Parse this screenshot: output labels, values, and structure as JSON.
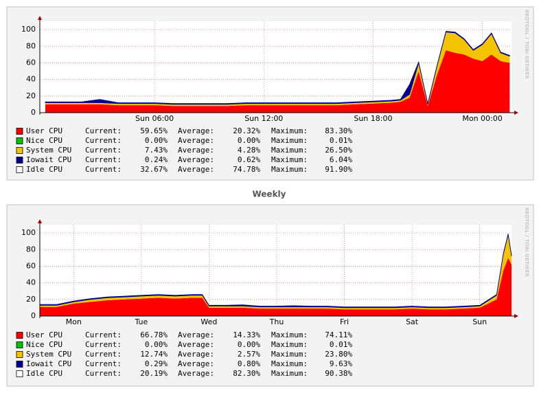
{
  "chart_data": [
    {
      "type": "area",
      "stacked": true,
      "watermark": "RRDTOOL / TOBI OETIKER",
      "x": [
        0,
        1,
        2,
        3,
        4,
        5,
        6,
        7,
        8,
        9,
        10,
        11,
        12,
        13,
        14,
        15,
        16,
        17,
        18,
        19,
        19.5,
        20,
        20.5,
        21,
        21.5,
        22,
        22.5,
        23,
        23.5,
        24,
        24.5,
        25,
        25.5
      ],
      "xlim": [
        -0.3,
        25.6
      ],
      "xticks": [
        {
          "value": 6,
          "label": "Sun 06:00"
        },
        {
          "value": 12,
          "label": "Sun 12:00"
        },
        {
          "value": 18,
          "label": "Sun 18:00"
        },
        {
          "value": 24,
          "label": "Mon 00:00"
        }
      ],
      "ylim": [
        0,
        110
      ],
      "yticks": [
        0,
        20,
        40,
        60,
        80,
        100
      ],
      "grid": true,
      "stat_names": [
        "Current:",
        "Average:",
        "Maximum:"
      ],
      "series": [
        {
          "name": "User CPU",
          "color": "#ff0000",
          "values": [
            10,
            10,
            10,
            10,
            9,
            9,
            9,
            8,
            8,
            8,
            8,
            9,
            9,
            9,
            9,
            9,
            9,
            10,
            11,
            12,
            13,
            18,
            50,
            8,
            45,
            75,
            72,
            70,
            65,
            62,
            70,
            62,
            60
          ],
          "stats": [
            59.65,
            20.32,
            83.3
          ],
          "stats_labels": [
            "59.65%",
            "20.32%",
            "83.30%"
          ]
        },
        {
          "name": "Nice CPU",
          "color": "#00c000",
          "values": [
            0,
            0,
            0,
            0,
            0,
            0,
            0,
            0,
            0,
            0,
            0,
            0,
            0,
            0,
            0,
            0,
            0,
            0,
            0,
            0,
            0,
            0,
            0,
            0,
            0,
            0,
            0,
            0,
            0,
            0,
            0,
            0,
            0
          ],
          "stats": [
            0.0,
            0.0,
            0.01
          ],
          "stats_labels": [
            "0.00%",
            "0.00%",
            "0.01%"
          ]
        },
        {
          "name": "System CPU",
          "color": "#f5c400",
          "values": [
            2,
            2,
            2,
            2,
            2,
            2,
            2,
            2,
            2,
            2,
            2,
            2,
            2,
            2,
            2,
            2,
            2,
            2,
            2,
            2,
            2,
            4,
            10,
            2,
            10,
            22,
            24,
            18,
            10,
            20,
            25,
            10,
            8
          ],
          "stats": [
            7.43,
            4.28,
            26.5
          ],
          "stats_labels": [
            "7.43%",
            "4.28%",
            "26.50%"
          ]
        },
        {
          "name": "Iowait CPU",
          "color": "#000090",
          "values": [
            1,
            1,
            1,
            4,
            1,
            1,
            1,
            1,
            1,
            1,
            1,
            1,
            1,
            1,
            1,
            1,
            1,
            1,
            1,
            1,
            1,
            12,
            1,
            1,
            1,
            1,
            1,
            1,
            1,
            1,
            1,
            1,
            1
          ],
          "stats": [
            0.24,
            0.62,
            6.04
          ],
          "stats_labels": [
            "0.24%",
            "0.62%",
            "6.04%"
          ]
        },
        {
          "name": "Idle CPU",
          "color": "#ffffff",
          "stats": [
            32.67,
            74.78,
            91.9
          ],
          "stats_labels": [
            "32.67%",
            "74.78%",
            "91.90%"
          ]
        }
      ]
    },
    {
      "type": "area",
      "stacked": true,
      "title": "Weekly",
      "watermark": "RRDTOOL / TOBI OETIKER",
      "x": [
        0,
        0.25,
        0.5,
        0.75,
        1,
        1.25,
        1.5,
        1.75,
        2,
        2.25,
        2.4,
        2.5,
        2.75,
        3,
        3.25,
        3.5,
        3.75,
        4,
        4.25,
        4.5,
        4.75,
        5,
        5.25,
        5.5,
        5.75,
        6,
        6.25,
        6.5,
        6.75,
        6.85,
        6.92,
        6.97
      ],
      "xlim": [
        0,
        6.97
      ],
      "xticks": [
        {
          "value": 0.5,
          "label": "Mon"
        },
        {
          "value": 1.5,
          "label": "Tue"
        },
        {
          "value": 2.5,
          "label": "Wed"
        },
        {
          "value": 3.5,
          "label": "Thu"
        },
        {
          "value": 4.5,
          "label": "Fri"
        },
        {
          "value": 5.5,
          "label": "Sat"
        },
        {
          "value": 6.5,
          "label": "Sun"
        }
      ],
      "ylim": [
        0,
        110
      ],
      "yticks": [
        0,
        20,
        40,
        60,
        80,
        100
      ],
      "grid": true,
      "stat_names": [
        "Current:",
        "Average:",
        "Maximum:"
      ],
      "series": [
        {
          "name": "User CPU",
          "color": "#ff0000",
          "values": [
            11,
            11,
            15,
            17,
            19,
            20,
            21,
            22,
            21,
            22,
            22,
            10,
            10,
            10,
            9,
            9,
            9,
            9,
            9,
            8,
            8,
            8,
            8,
            9,
            8,
            8,
            9,
            10,
            20,
            55,
            70,
            62
          ],
          "stats": [
            66.78,
            14.33,
            74.11
          ],
          "stats_labels": [
            "66.78%",
            "14.33%",
            "74.11%"
          ]
        },
        {
          "name": "Nice CPU",
          "color": "#00c000",
          "values": [
            0,
            0,
            0,
            0,
            0,
            0,
            0,
            0,
            0,
            0,
            0,
            0,
            0,
            0,
            0,
            0,
            0,
            0,
            0,
            0,
            0,
            0,
            0,
            0,
            0,
            0,
            0,
            0,
            0,
            0,
            0,
            0
          ],
          "stats": [
            0.0,
            0.0,
            0.01
          ],
          "stats_labels": [
            "0.00%",
            "0.00%",
            "0.01%"
          ]
        },
        {
          "name": "System CPU",
          "color": "#f5c400",
          "values": [
            2,
            2,
            2,
            3,
            3,
            3,
            3,
            3,
            3,
            3,
            3,
            2,
            2,
            2,
            2,
            2,
            2,
            2,
            2,
            2,
            2,
            2,
            2,
            2,
            2,
            2,
            2,
            2,
            5,
            20,
            28,
            10
          ],
          "stats": [
            12.74,
            2.57,
            23.8
          ],
          "stats_labels": [
            "12.74%",
            "2.57%",
            "23.80%"
          ]
        },
        {
          "name": "Iowait CPU",
          "color": "#000090",
          "values": [
            1,
            1,
            1,
            1,
            1,
            1,
            1,
            1,
            1,
            1,
            1,
            1,
            1,
            1.5,
            1,
            1,
            1.5,
            1,
            1,
            1,
            1,
            1,
            1,
            1,
            1,
            1,
            1,
            1,
            1,
            1,
            1,
            1
          ],
          "stats": [
            0.29,
            0.8,
            9.63
          ],
          "stats_labels": [
            "0.29%",
            "0.80%",
            "9.63%"
          ]
        },
        {
          "name": "Idle CPU",
          "color": "#ffffff",
          "stats": [
            20.19,
            82.3,
            90.38
          ],
          "stats_labels": [
            "20.19%",
            "82.30%",
            "90.38%"
          ]
        }
      ]
    }
  ]
}
